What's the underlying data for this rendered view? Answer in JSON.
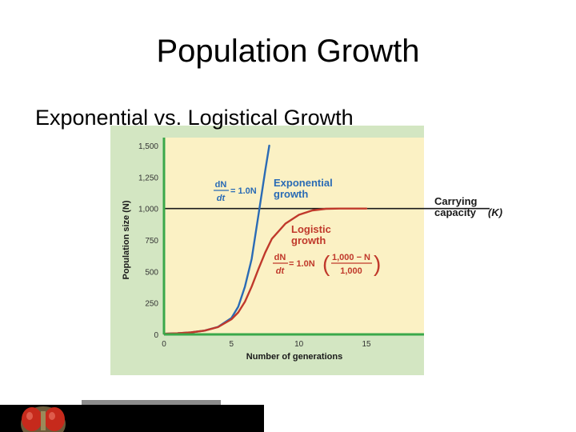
{
  "slide": {
    "title": "Population Growth",
    "subtitle": "Exponential vs. Logistical Growth"
  },
  "chart_data": {
    "type": "line",
    "xlabel": "Number of generations",
    "ylabel": "Population size (N)",
    "xlim": [
      0,
      15
    ],
    "ylim": [
      0,
      1500
    ],
    "x_ticks": [
      "0",
      "5",
      "10",
      "15"
    ],
    "y_ticks": [
      "0",
      "250",
      "500",
      "750",
      "1,000",
      "1,250",
      "1,500"
    ],
    "x_tick_values": [
      0,
      5,
      10,
      15
    ],
    "y_tick_values": [
      0,
      250,
      500,
      750,
      1000,
      1250,
      1500
    ],
    "grid": false,
    "series": [
      {
        "name": "Exponential growth",
        "color": "#2a6bb5",
        "x": [
          0,
          1,
          2,
          3,
          4,
          5,
          5.5,
          6,
          6.5,
          7,
          7.5,
          7.8
        ],
        "y": [
          5,
          9,
          16,
          30,
          60,
          130,
          220,
          380,
          600,
          950,
          1300,
          1500
        ]
      },
      {
        "name": "Logistic growth",
        "color": "#c0392b",
        "x": [
          0,
          1,
          2,
          3,
          4,
          5,
          5.5,
          6,
          6.5,
          7,
          7.5,
          8,
          9,
          10,
          11,
          12,
          13,
          14,
          15
        ],
        "y": [
          5,
          9,
          16,
          30,
          58,
          120,
          175,
          260,
          380,
          520,
          650,
          760,
          880,
          950,
          985,
          998,
          1000,
          1000,
          1000
        ]
      }
    ],
    "carrying_capacity": {
      "value": 1000,
      "label_line1": "Carrying",
      "label_line2": "capacity",
      "label_symbol": "(K)"
    },
    "annotations": {
      "exp_label_line1": "Exponential",
      "exp_label_line2": "growth",
      "log_label_line1": "Logistic",
      "log_label_line2": "growth",
      "exp_eq_num": "dN",
      "exp_eq_den": "dt",
      "exp_eq_rhs": "= 1.0N",
      "log_eq_num": "dN",
      "log_eq_den": "dt",
      "log_eq_rhs": "= 1.0N",
      "log_frac_num": "1,000 − N",
      "log_frac_den": "1,000"
    },
    "colors": {
      "plot_bg": "#fbf1c4",
      "panel_bg": "#d3e6c2",
      "axis": "#3aa84a",
      "annotation": "#2a6bb5",
      "log_annotation": "#c0392b"
    }
  }
}
